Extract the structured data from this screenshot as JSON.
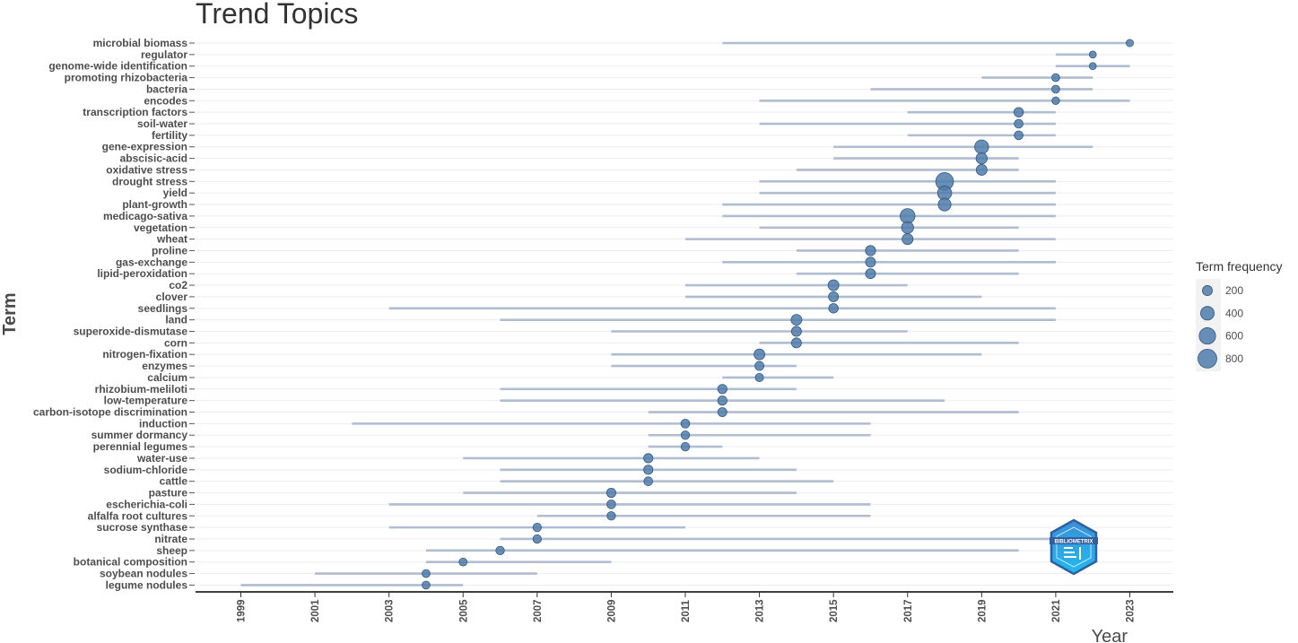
{
  "chart_data": {
    "type": "scatter",
    "title": "Trend Topics",
    "xlabel": "Year",
    "ylabel": "Term",
    "xlim": [
      1998,
      2024
    ],
    "x_ticks": [
      1999,
      2001,
      2003,
      2005,
      2007,
      2009,
      2011,
      2013,
      2015,
      2017,
      2019,
      2021,
      2023
    ],
    "legend": {
      "title": "Term frequency",
      "position": "right",
      "sizes": [
        200,
        400,
        600,
        800
      ]
    },
    "colors": {
      "point": "#4f7cac",
      "range_line": "#b0bccf",
      "grid": "#ededed"
    },
    "terms": [
      {
        "term": "microbial biomass",
        "q1": 2012,
        "median": 2023,
        "q3": 2023,
        "freq": 100
      },
      {
        "term": "regulator",
        "q1": 2021,
        "median": 2022,
        "q3": 2022,
        "freq": 90
      },
      {
        "term": "genome-wide identification",
        "q1": 2021,
        "median": 2022,
        "q3": 2023,
        "freq": 90
      },
      {
        "term": "promoting rhizobacteria",
        "q1": 2019,
        "median": 2021,
        "q3": 2022,
        "freq": 120
      },
      {
        "term": "bacteria",
        "q1": 2016,
        "median": 2021,
        "q3": 2022,
        "freq": 120
      },
      {
        "term": "encodes",
        "q1": 2013,
        "median": 2021,
        "q3": 2023,
        "freq": 110
      },
      {
        "term": "transcription factors",
        "q1": 2017,
        "median": 2020,
        "q3": 2021,
        "freq": 180
      },
      {
        "term": "soil-water",
        "q1": 2013,
        "median": 2020,
        "q3": 2021,
        "freq": 150
      },
      {
        "term": "fertility",
        "q1": 2017,
        "median": 2020,
        "q3": 2021,
        "freq": 150
      },
      {
        "term": "gene-expression",
        "q1": 2015,
        "median": 2019,
        "q3": 2022,
        "freq": 420
      },
      {
        "term": "abscisic-acid",
        "q1": 2015,
        "median": 2019,
        "q3": 2020,
        "freq": 260
      },
      {
        "term": "oxidative stress",
        "q1": 2014,
        "median": 2019,
        "q3": 2020,
        "freq": 240
      },
      {
        "term": "drought stress",
        "q1": 2013,
        "median": 2018,
        "q3": 2021,
        "freq": 700
      },
      {
        "term": "yield",
        "q1": 2013,
        "median": 2018,
        "q3": 2021,
        "freq": 430
      },
      {
        "term": "plant-growth",
        "q1": 2012,
        "median": 2018,
        "q3": 2021,
        "freq": 350
      },
      {
        "term": "medicago-sativa",
        "q1": 2012,
        "median": 2017,
        "q3": 2021,
        "freq": 480
      },
      {
        "term": "vegetation",
        "q1": 2013,
        "median": 2017,
        "q3": 2020,
        "freq": 300
      },
      {
        "term": "wheat",
        "q1": 2011,
        "median": 2017,
        "q3": 2021,
        "freq": 250
      },
      {
        "term": "proline",
        "q1": 2014,
        "median": 2016,
        "q3": 2020,
        "freq": 210
      },
      {
        "term": "gas-exchange",
        "q1": 2012,
        "median": 2016,
        "q3": 2021,
        "freq": 200
      },
      {
        "term": "lipid-peroxidation",
        "q1": 2014,
        "median": 2016,
        "q3": 2020,
        "freq": 200
      },
      {
        "term": "co2",
        "q1": 2011,
        "median": 2015,
        "q3": 2017,
        "freq": 240
      },
      {
        "term": "clover",
        "q1": 2011,
        "median": 2015,
        "q3": 2019,
        "freq": 200
      },
      {
        "term": "seedlings",
        "q1": 2003,
        "median": 2015,
        "q3": 2021,
        "freq": 180
      },
      {
        "term": "land",
        "q1": 2006,
        "median": 2014,
        "q3": 2021,
        "freq": 240
      },
      {
        "term": "superoxide-dismutase",
        "q1": 2009,
        "median": 2014,
        "q3": 2017,
        "freq": 200
      },
      {
        "term": "corn",
        "q1": 2013,
        "median": 2014,
        "q3": 2020,
        "freq": 200
      },
      {
        "term": "nitrogen-fixation",
        "q1": 2009,
        "median": 2013,
        "q3": 2019,
        "freq": 240
      },
      {
        "term": "enzymes",
        "q1": 2009,
        "median": 2013,
        "q3": 2014,
        "freq": 160
      },
      {
        "term": "calcium",
        "q1": 2012,
        "median": 2013,
        "q3": 2015,
        "freq": 130
      },
      {
        "term": "rhizobium-meliloti",
        "q1": 2006,
        "median": 2012,
        "q3": 2014,
        "freq": 170
      },
      {
        "term": "low-temperature",
        "q1": 2006,
        "median": 2012,
        "q3": 2018,
        "freq": 170
      },
      {
        "term": "carbon-isotope discrimination",
        "q1": 2010,
        "median": 2012,
        "q3": 2020,
        "freq": 160
      },
      {
        "term": "induction",
        "q1": 2002,
        "median": 2011,
        "q3": 2016,
        "freq": 150
      },
      {
        "term": "summer dormancy",
        "q1": 2010,
        "median": 2011,
        "q3": 2016,
        "freq": 140
      },
      {
        "term": "perennial legumes",
        "q1": 2010,
        "median": 2011,
        "q3": 2012,
        "freq": 140
      },
      {
        "term": "water-use",
        "q1": 2005,
        "median": 2010,
        "q3": 2013,
        "freq": 170
      },
      {
        "term": "sodium-chloride",
        "q1": 2006,
        "median": 2010,
        "q3": 2014,
        "freq": 170
      },
      {
        "term": "cattle",
        "q1": 2006,
        "median": 2010,
        "q3": 2015,
        "freq": 150
      },
      {
        "term": "pasture",
        "q1": 2005,
        "median": 2009,
        "q3": 2014,
        "freq": 170
      },
      {
        "term": "escherichia-coli",
        "q1": 2003,
        "median": 2009,
        "q3": 2016,
        "freq": 150
      },
      {
        "term": "alfalfa root cultures",
        "q1": 2007,
        "median": 2009,
        "q3": 2016,
        "freq": 140
      },
      {
        "term": "sucrose synthase",
        "q1": 2003,
        "median": 2007,
        "q3": 2011,
        "freq": 140
      },
      {
        "term": "nitrate",
        "q1": 2006,
        "median": 2007,
        "q3": 2021,
        "freq": 140
      },
      {
        "term": "sheep",
        "q1": 2004,
        "median": 2006,
        "q3": 2020,
        "freq": 140
      },
      {
        "term": "botanical composition",
        "q1": 2004,
        "median": 2005,
        "q3": 2009,
        "freq": 120
      },
      {
        "term": "soybean nodules",
        "q1": 2001,
        "median": 2004,
        "q3": 2007,
        "freq": 120
      },
      {
        "term": "legume nodules",
        "q1": 1999,
        "median": 2004,
        "q3": 2005,
        "freq": 120
      }
    ]
  },
  "logo": {
    "text": "BIBLIOMETRIX"
  }
}
